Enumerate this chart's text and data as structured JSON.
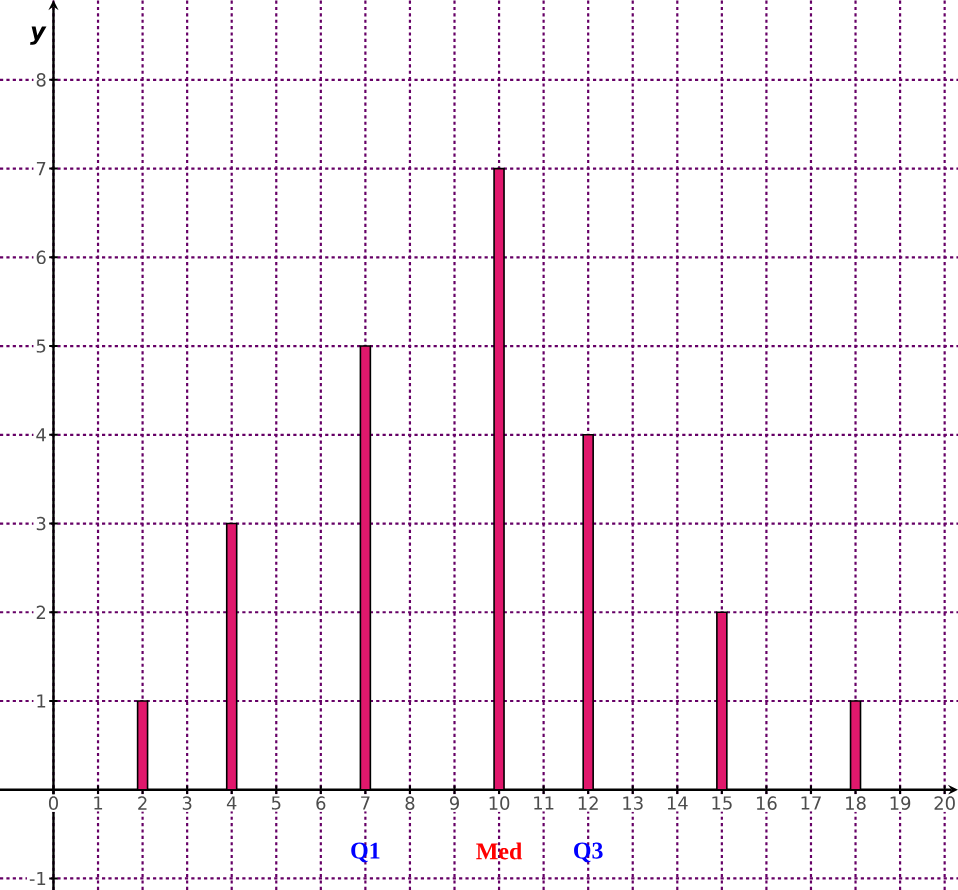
{
  "chart_data": {
    "type": "bar",
    "ylabel": "y",
    "x": [
      2,
      4,
      7,
      10,
      12,
      15,
      18
    ],
    "series": [
      {
        "color": "#e0186c",
        "values": [
          1,
          3,
          5,
          7,
          4,
          2,
          1
        ]
      }
    ],
    "xlim": [
      -1.2,
      20.3
    ],
    "ylim": [
      -1.13,
      8.9
    ],
    "xticks": [
      0,
      1,
      2,
      3,
      4,
      5,
      6,
      7,
      8,
      9,
      10,
      11,
      12,
      13,
      14,
      15,
      16,
      17,
      18,
      19,
      20
    ],
    "yticks": [
      -1,
      1,
      2,
      3,
      4,
      5,
      6,
      7,
      8
    ],
    "grid": true,
    "annotations": [
      {
        "text": "Q1",
        "x": 7,
        "y": 0
      },
      {
        "text": "Med",
        "x": 10,
        "y": 0
      },
      {
        "text": "Q3",
        "x": 12,
        "y": 0
      }
    ]
  }
}
